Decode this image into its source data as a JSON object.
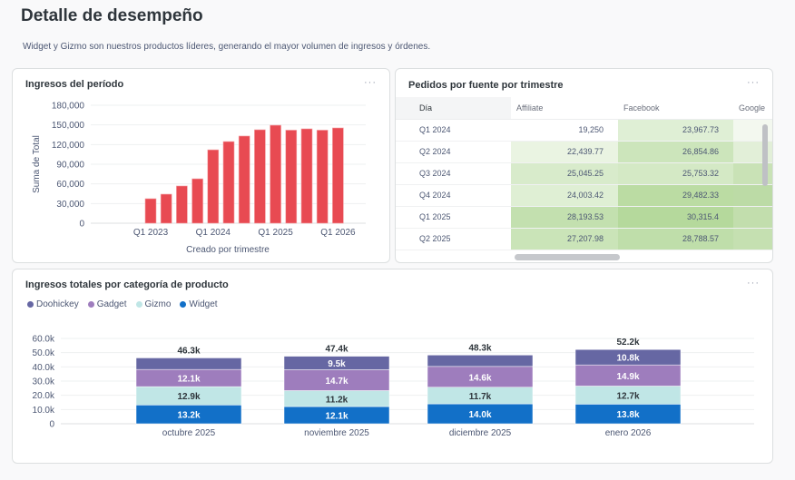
{
  "page": {
    "title": "Detalle de desempeño",
    "description": "Widget y Gizmo son nuestros productos líderes, generando el mayor volumen de ingresos y órdenes.",
    "menu_icon": "more-horizontal-icon",
    "menu_glyph": "···"
  },
  "revenue_card": {
    "title": "Ingresos del período"
  },
  "orders_card": {
    "title": "Pedidos por fuente por trimestre",
    "columns": [
      "Día",
      "Affiliate",
      "Facebook",
      "Google"
    ],
    "rows": [
      {
        "dia": "Q1 2024",
        "affiliate": "19,250",
        "facebook": "23,967.73"
      },
      {
        "dia": "Q2 2024",
        "affiliate": "22,439.77",
        "facebook": "26,854.86"
      },
      {
        "dia": "Q3 2024",
        "affiliate": "25,045.25",
        "facebook": "25,753.32"
      },
      {
        "dia": "Q4 2024",
        "affiliate": "24,003.42",
        "facebook": "29,482.33"
      },
      {
        "dia": "Q1 2025",
        "affiliate": "28,193.53",
        "facebook": "30,315.4"
      },
      {
        "dia": "Q2 2025",
        "affiliate": "27,207.98",
        "facebook": "28,788.57"
      }
    ],
    "heat_low": "#ffffff",
    "heat_high": "#b5d99c"
  },
  "category_card": {
    "title": "Ingresos totales por categoría de producto"
  },
  "chart_data": [
    {
      "type": "bar",
      "title": "Ingresos del período",
      "xlabel": "Creado por trimestre",
      "ylabel": "Suma de Total",
      "categories": [
        "Q1 2023",
        "Q2 2023",
        "Q3 2023",
        "Q4 2023",
        "Q1 2024",
        "Q2 2024",
        "Q3 2024",
        "Q4 2024",
        "Q1 2025",
        "Q2 2025",
        "Q3 2025",
        "Q4 2025",
        "Q1 2026"
      ],
      "values": [
        37400,
        44300,
        56800,
        67800,
        112000,
        124600,
        133000,
        142600,
        149500,
        142000,
        144000,
        142000,
        145400
      ],
      "x_tick_labels": [
        "Q1 2023",
        "Q1 2024",
        "Q1 2025",
        "Q1 2026"
      ],
      "y_ticks": [
        "0",
        "30,000",
        "60,000",
        "90,000",
        "120,000",
        "150,000",
        "180,000"
      ],
      "ylim": [
        0,
        180000
      ],
      "grid": true,
      "color": "#e84a52"
    },
    {
      "type": "bar",
      "stacked": true,
      "title": "Ingresos totales por categoría de producto",
      "categories": [
        "octubre 2025",
        "noviembre 2025",
        "diciembre 2025",
        "enero 2026"
      ],
      "series": [
        {
          "name": "Widget",
          "color": "#1270c8",
          "values": [
            13.2,
            12.1,
            14.0,
            13.8
          ],
          "labels": [
            "13.2k",
            "12.1k",
            "14.0k",
            "13.8k"
          ]
        },
        {
          "name": "Gizmo",
          "color": "#c0e6e6",
          "values": [
            12.9,
            11.2,
            11.7,
            12.7
          ],
          "labels": [
            "12.9k",
            "11.2k",
            "11.7k",
            "12.7k"
          ]
        },
        {
          "name": "Gadget",
          "color": "#9e7dbd",
          "values": [
            12.1,
            14.7,
            14.6,
            14.9
          ],
          "labels": [
            "12.1k",
            "14.7k",
            "14.6k",
            "14.9k"
          ]
        },
        {
          "name": "Doohickey",
          "color": "#6667a3",
          "values": [
            8.1,
            9.5,
            8.0,
            10.8
          ],
          "labels": [
            "",
            "9.5k",
            "",
            "10.8k"
          ]
        }
      ],
      "totals": [
        "46.3k",
        "47.4k",
        "48.3k",
        "52.2k"
      ],
      "legend": [
        "Doohickey",
        "Gadget",
        "Gizmo",
        "Widget"
      ],
      "legend_position": "top-left",
      "y_ticks": [
        "0",
        "10.0k",
        "20.0k",
        "30.0k",
        "40.0k",
        "50.0k",
        "60.0k"
      ],
      "ylim": [
        0,
        60
      ],
      "unit": "k",
      "grid": true
    }
  ]
}
